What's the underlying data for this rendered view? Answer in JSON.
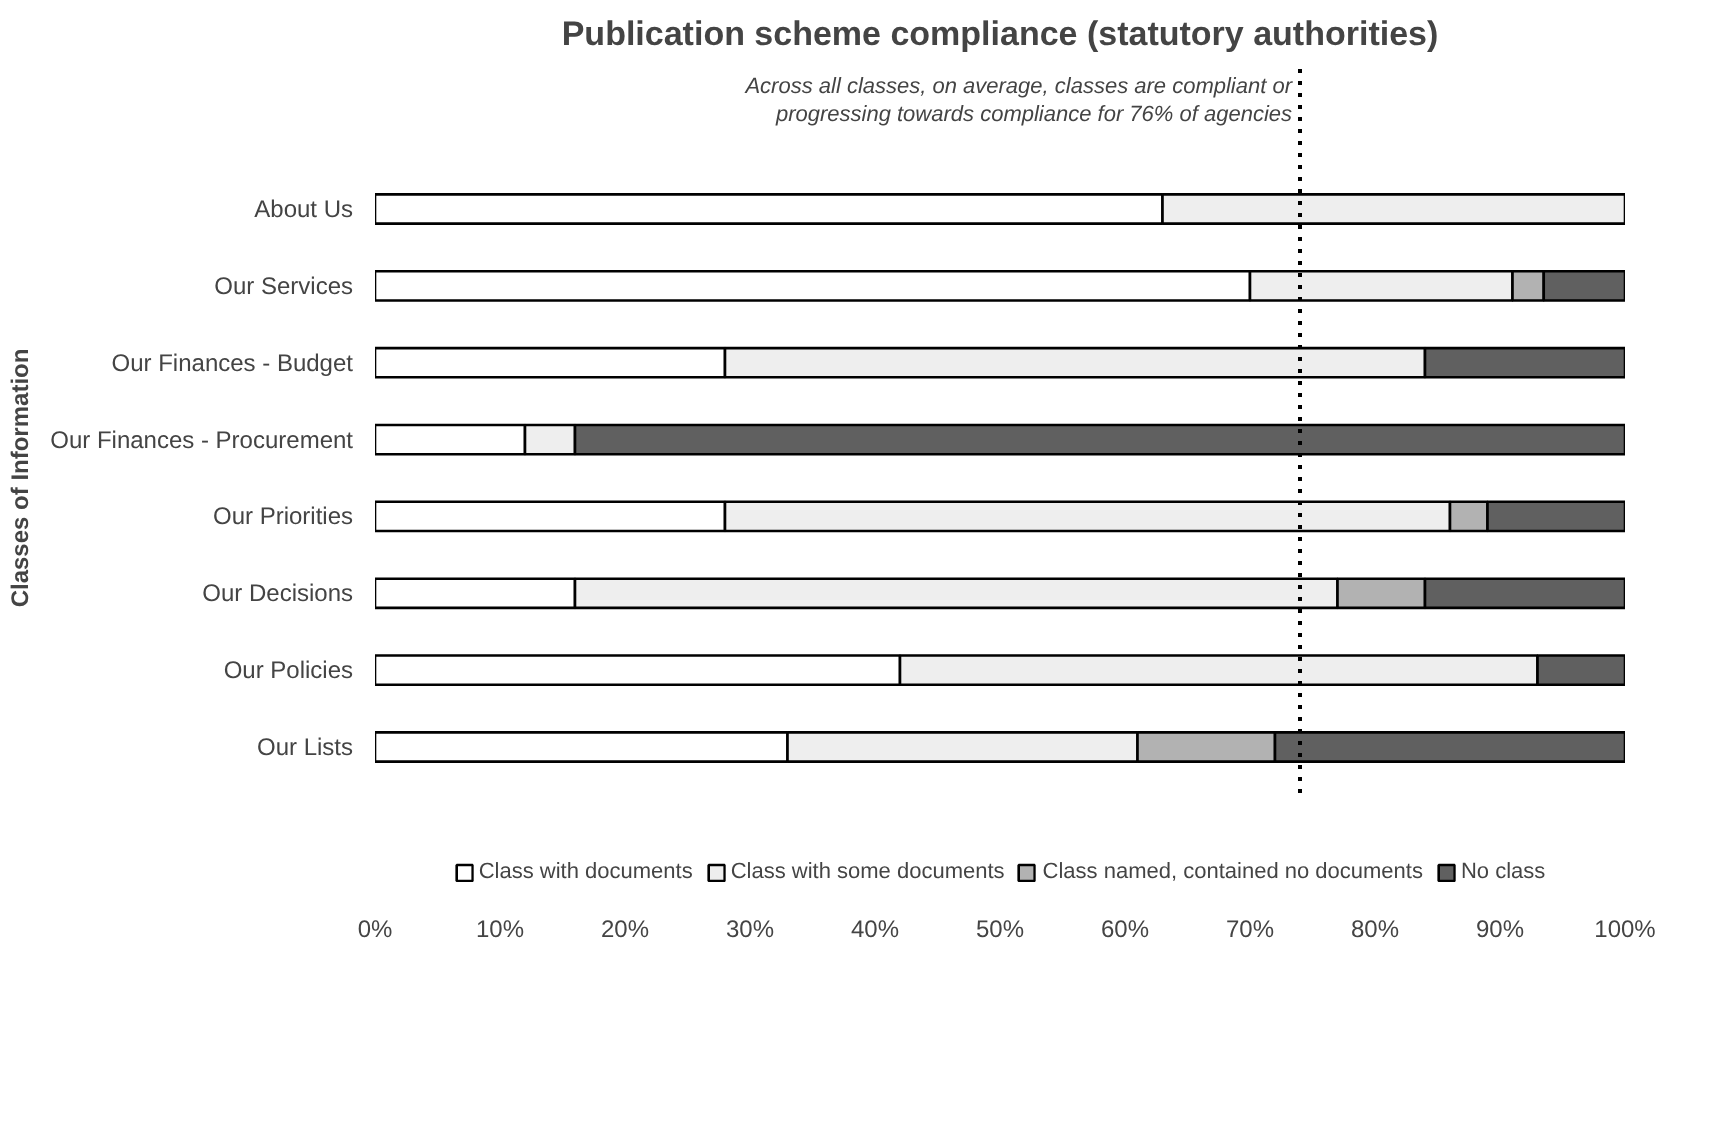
{
  "chart_data": {
    "type": "bar",
    "orientation": "horizontal",
    "stacked": true,
    "title": "Publication scheme compliance (statutory authorities)",
    "ylabel": "Classes of Information",
    "categories": [
      "About Us",
      "Our Services",
      "Our Finances - Budget",
      "Our Finances - Procurement",
      "Our Priorities",
      "Our Decisions",
      "Our Policies",
      "Our Lists"
    ],
    "series": [
      {
        "name": "Class with documents",
        "color": "#ffffff",
        "values": [
          63,
          70,
          28,
          12,
          28,
          16,
          42,
          33
        ]
      },
      {
        "name": "Class with some documents",
        "color": "#eeeeee",
        "values": [
          37,
          21,
          56,
          4,
          58,
          61,
          51,
          28
        ]
      },
      {
        "name": "Class named, contained no documents",
        "color": "#b2b2b2",
        "values": [
          0,
          2.5,
          0,
          0,
          3,
          7,
          0,
          11
        ]
      },
      {
        "name": "No class",
        "color": "#606060",
        "values": [
          0,
          6.5,
          16,
          84,
          11,
          16,
          7,
          28
        ]
      }
    ],
    "xlim": [
      0,
      100
    ],
    "xticks": [
      {
        "value": 0,
        "label": "0%"
      },
      {
        "value": 10,
        "label": "10%"
      },
      {
        "value": 20,
        "label": "20%"
      },
      {
        "value": 30,
        "label": "30%"
      },
      {
        "value": 40,
        "label": "40%"
      },
      {
        "value": 50,
        "label": "50%"
      },
      {
        "value": 60,
        "label": "60%"
      },
      {
        "value": 70,
        "label": "70%"
      },
      {
        "value": 80,
        "label": "80%"
      },
      {
        "value": 90,
        "label": "90%"
      },
      {
        "value": 100,
        "label": "100%"
      }
    ],
    "ref_lines": [
      {
        "axis": "x",
        "value": 74,
        "line_style": "dotted",
        "label": "Across all classes, on average, classes are compliant or\nprogressing towards compliance for 76% of agencies"
      }
    ],
    "legend": "bottom",
    "grid": false
  }
}
